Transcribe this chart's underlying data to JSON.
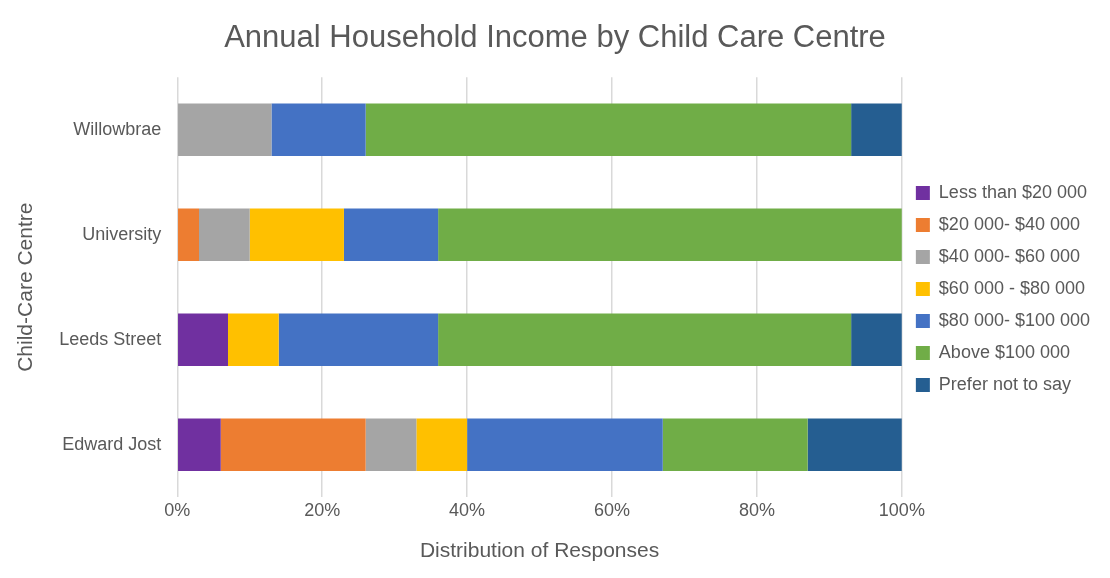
{
  "chart_data": {
    "type": "bar",
    "orientation": "horizontal",
    "stacked": true,
    "title": "Annual Household Income by Child Care Centre",
    "xlabel": "Distribution of Responses",
    "ylabel": "Child-Care Centre",
    "categories": [
      "Willowbrae",
      "University",
      "Leeds Street",
      "Edward Jost"
    ],
    "series": [
      {
        "name": "Less than $20 000",
        "color": "#7030a0",
        "values": [
          0,
          0,
          7,
          6
        ]
      },
      {
        "name": "$20 000- $40 000",
        "color": "#ed7d31",
        "values": [
          0,
          3,
          0,
          20
        ]
      },
      {
        "name": "$40 000- $60 000",
        "color": "#a5a5a5",
        "values": [
          13,
          7,
          0,
          7
        ]
      },
      {
        "name": "$60 000 - $80 000",
        "color": "#ffc000",
        "values": [
          0,
          13,
          7,
          7
        ]
      },
      {
        "name": "$80 000- $100 000",
        "color": "#4472c4",
        "values": [
          13,
          13,
          22,
          27
        ]
      },
      {
        "name": "Above $100 000",
        "color": "#70ad47",
        "values": [
          67,
          64,
          57,
          20
        ]
      },
      {
        "name": "Prefer not to say",
        "color": "#255e91",
        "values": [
          7,
          0,
          7,
          13
        ]
      }
    ],
    "xlim": [
      0,
      100
    ],
    "xticks": [
      {
        "value": 0,
        "label": "0%"
      },
      {
        "value": 20,
        "label": "20%"
      },
      {
        "value": 40,
        "label": "40%"
      },
      {
        "value": 60,
        "label": "60%"
      },
      {
        "value": 80,
        "label": "80%"
      },
      {
        "value": 100,
        "label": "100%"
      }
    ],
    "grid": "x",
    "legend": "right"
  }
}
